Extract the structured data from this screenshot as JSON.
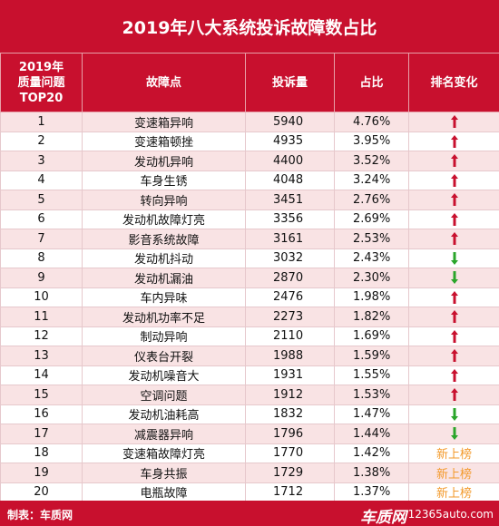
{
  "title": "2019年八大系统投诉故障数占比",
  "table": {
    "headers": [
      "2019年\n质量问题\nTOP20",
      "故障点",
      "投诉量",
      "占比",
      "排名变化"
    ],
    "rows": [
      [
        1,
        "变速箱异响",
        5940,
        "4.76%",
        "up"
      ],
      [
        2,
        "变速箱顿挫",
        4935,
        "3.95%",
        "up"
      ],
      [
        3,
        "发动机异响",
        4400,
        "3.52%",
        "up"
      ],
      [
        4,
        "车身生锈",
        4048,
        "3.24%",
        "up"
      ],
      [
        5,
        "转向异响",
        3451,
        "2.76%",
        "up"
      ],
      [
        6,
        "发动机故障灯亮",
        3356,
        "2.69%",
        "up"
      ],
      [
        7,
        "影音系统故障",
        3161,
        "2.53%",
        "up"
      ],
      [
        8,
        "发动机抖动",
        3032,
        "2.43%",
        "down"
      ],
      [
        9,
        "发动机漏油",
        2870,
        "2.30%",
        "down"
      ],
      [
        10,
        "车内异味",
        2476,
        "1.98%",
        "up"
      ],
      [
        11,
        "发动机功率不足",
        2273,
        "1.82%",
        "up"
      ],
      [
        12,
        "制动异响",
        2110,
        "1.69%",
        "up"
      ],
      [
        13,
        "仪表台开裂",
        1988,
        "1.59%",
        "up"
      ],
      [
        14,
        "发动机噪音大",
        1931,
        "1.55%",
        "up"
      ],
      [
        15,
        "空调问题",
        1912,
        "1.53%",
        "up"
      ],
      [
        16,
        "发动机油耗高",
        1832,
        "1.47%",
        "down"
      ],
      [
        17,
        "减震器异响",
        1796,
        "1.44%",
        "down"
      ],
      [
        18,
        "变速箱故障灯亮",
        1770,
        "1.42%",
        "新上榜"
      ],
      [
        19,
        "车身共振",
        1729,
        "1.38%",
        "新上榜"
      ],
      [
        20,
        "电瓶故障",
        1712,
        "1.37%",
        "新上榜"
      ]
    ]
  },
  "footer": {
    "source": "制表：车质网",
    "logo": "车质网",
    "site": "12365auto.com"
  }
}
